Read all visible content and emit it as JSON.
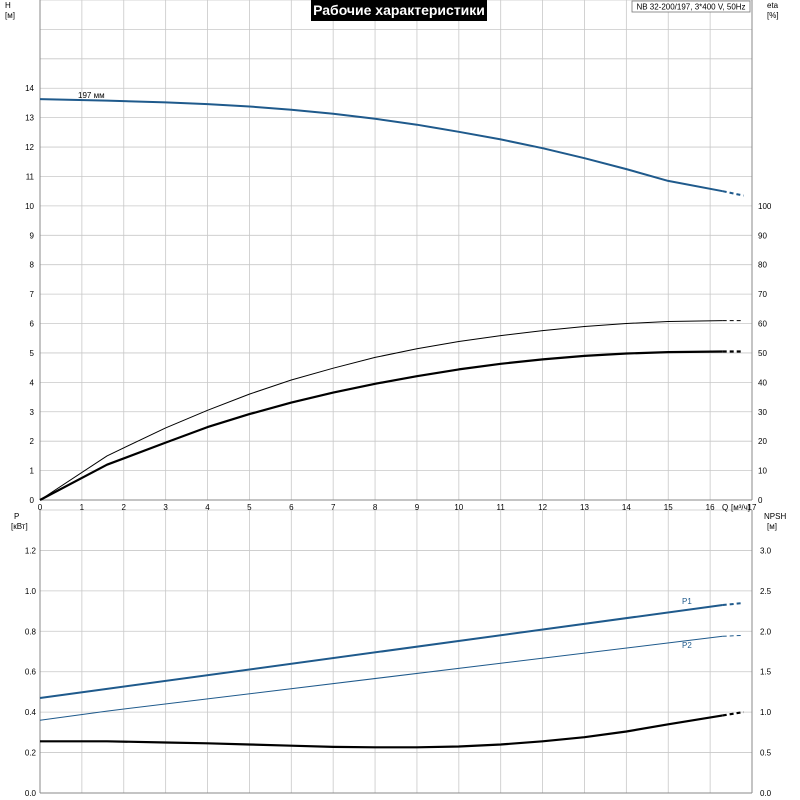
{
  "title": "Рабочие характеристики",
  "model": "NB 32-200/197, 3*400 V, 50Hz",
  "colors": {
    "blue": "#1f5a8c",
    "black": "#000000",
    "grid": "#c8c8c8",
    "axis": "#888888"
  },
  "chart_data": [
    {
      "type": "line",
      "name": "head_efficiency",
      "x_axis": {
        "label": "Q",
        "unit": "[м³/ч]",
        "min": 0,
        "max": 17,
        "ticks": [
          0,
          1,
          2,
          3,
          4,
          5,
          6,
          7,
          8,
          9,
          10,
          11,
          12,
          13,
          14,
          15,
          16,
          17
        ]
      },
      "y_left": {
        "label": "H",
        "unit": "[м]",
        "min": 0,
        "max": 17,
        "ticks": [
          0,
          1,
          2,
          3,
          4,
          5,
          6,
          7,
          8,
          9,
          10,
          11,
          12,
          13,
          14
        ]
      },
      "y_right": {
        "label": "eta",
        "unit": "[%]",
        "min": 0,
        "max": 170,
        "ticks": [
          0,
          10,
          20,
          30,
          40,
          50,
          60,
          70,
          80,
          90,
          100
        ]
      },
      "grid": true,
      "series": [
        {
          "name": "197 мм",
          "axis": "left",
          "color": "#1f5a8c",
          "x": [
            0,
            1.6,
            3,
            4,
            5,
            6,
            7,
            8,
            9,
            10,
            11,
            12,
            13,
            14,
            15,
            16.3
          ],
          "y": [
            13.63,
            13.58,
            13.52,
            13.46,
            13.38,
            13.27,
            13.13,
            12.96,
            12.76,
            12.52,
            12.26,
            11.96,
            11.62,
            11.25,
            10.85,
            10.5
          ],
          "ext_x": [
            16.3,
            16.8
          ],
          "ext_y": [
            10.5,
            10.35
          ]
        },
        {
          "name": "eta_thin",
          "axis": "right",
          "color": "#000000",
          "x": [
            0,
            1.6,
            3,
            4,
            5,
            6,
            7,
            8,
            9,
            10,
            11,
            12,
            13,
            14,
            15,
            16.3
          ],
          "y": [
            0,
            15,
            24.5,
            30.5,
            36,
            40.8,
            44.8,
            48.5,
            51.4,
            53.9,
            55.9,
            57.6,
            59,
            60,
            60.7,
            61
          ],
          "ext_x": [
            16.3,
            16.8
          ],
          "ext_y": [
            61,
            61
          ]
        },
        {
          "name": "eta",
          "axis": "right",
          "color": "#000000",
          "x": [
            0,
            1.6,
            3,
            4,
            5,
            6,
            7,
            8,
            9,
            10,
            11,
            12,
            13,
            14,
            15,
            16.3
          ],
          "y": [
            0,
            12,
            19.5,
            24.8,
            29.2,
            33.1,
            36.5,
            39.5,
            42.1,
            44.4,
            46.3,
            47.8,
            49,
            49.8,
            50.3,
            50.5
          ],
          "ext_x": [
            16.3,
            16.8
          ],
          "ext_y": [
            50.5,
            50.5
          ]
        }
      ]
    },
    {
      "type": "line",
      "name": "power_npsh",
      "x_axis": {
        "min": 0,
        "max": 17
      },
      "y_left": {
        "label": "P",
        "unit": "[кВт]",
        "min": 0,
        "max": 1.4,
        "ticks": [
          0.0,
          0.2,
          0.4,
          0.6,
          0.8,
          1.0,
          1.2
        ]
      },
      "y_right": {
        "label": "NPSH",
        "unit": "[м]",
        "min": 0,
        "max": 3.5,
        "ticks": [
          0.0,
          0.5,
          1.0,
          1.5,
          2.0,
          2.5,
          3.0
        ]
      },
      "grid": true,
      "series": [
        {
          "name": "P1",
          "axis": "left",
          "color": "#1f5a8c",
          "x": [
            0,
            1.6,
            16.3
          ],
          "y": [
            0.47,
            0.515,
            0.93
          ],
          "ext_x": [
            16.3,
            16.8
          ],
          "ext_y": [
            0.93,
            0.94
          ]
        },
        {
          "name": "P2",
          "axis": "left",
          "color": "#1f5a8c",
          "x": [
            0,
            1.6,
            16.3
          ],
          "y": [
            0.36,
            0.405,
            0.775
          ],
          "ext_x": [
            16.3,
            16.8
          ],
          "ext_y": [
            0.775,
            0.78
          ]
        },
        {
          "name": "NPSH",
          "axis": "right",
          "color": "#000000",
          "x": [
            0,
            1.6,
            3,
            4,
            5,
            6,
            7,
            8,
            9,
            10,
            11,
            12,
            13,
            14,
            15,
            16.3
          ],
          "y": [
            0.64,
            0.64,
            0.625,
            0.615,
            0.6,
            0.585,
            0.57,
            0.565,
            0.565,
            0.575,
            0.6,
            0.64,
            0.69,
            0.76,
            0.85,
            0.96
          ],
          "ext_x": [
            16.3,
            16.8
          ],
          "ext_y": [
            0.96,
            1.0
          ]
        }
      ]
    }
  ]
}
